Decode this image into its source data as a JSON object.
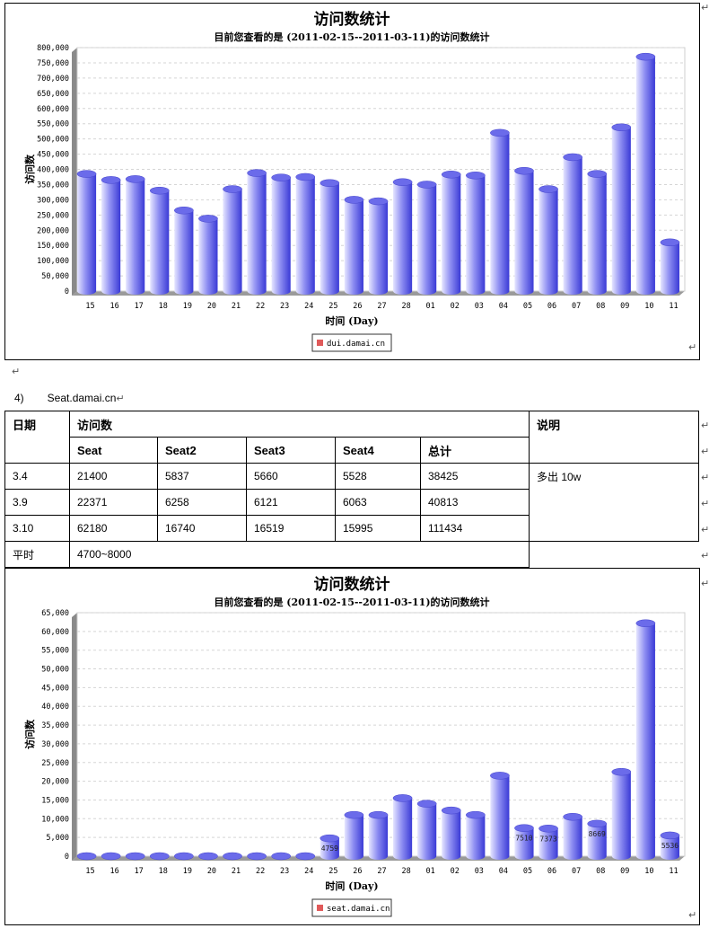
{
  "colors": {
    "bar_light": "#e6e6ff",
    "bar_mid": "#8f8ff2",
    "bar_dark": "#3a3ad6",
    "bar_top": "#6b6bea",
    "legend_swatch": "#e05a5a"
  },
  "paragraph_mark": "↵",
  "heading": {
    "number": "4)",
    "text": "Seat.damai.cn"
  },
  "table": {
    "headers": {
      "date": "日期",
      "visits": "访问数",
      "note": "说明"
    },
    "subheaders": [
      "Seat",
      "Seat2",
      "Seat3",
      "Seat4",
      "总计"
    ],
    "rows": [
      {
        "date": "3.4",
        "values": [
          "21400",
          "5837",
          "5660",
          "5528",
          "38425"
        ]
      },
      {
        "date": "3.9",
        "values": [
          "22371",
          "6258",
          "6121",
          "6063",
          "40813"
        ]
      },
      {
        "date": "3.10",
        "values": [
          "62180",
          "16740",
          "16519",
          "15995",
          "111434"
        ]
      }
    ],
    "note_text": "多出 10w",
    "normal_label": "平时",
    "normal_value": "4700~8000"
  },
  "chart_data": [
    {
      "type": "bar",
      "title": "访问数统计",
      "subtitle": "目前您查看的是 (2011-02-15--2011-03-11)的访问数统计",
      "xlabel": "时间 (Day)",
      "ylabel": "访问数",
      "ylim": [
        0,
        800000
      ],
      "yticks": [
        "0",
        "50,000",
        "100,000",
        "150,000",
        "200,000",
        "250,000",
        "300,000",
        "350,000",
        "400,000",
        "450,000",
        "500,000",
        "550,000",
        "600,000",
        "650,000",
        "700,000",
        "750,000",
        "800,000"
      ],
      "categories": [
        "15",
        "16",
        "17",
        "18",
        "19",
        "20",
        "21",
        "22",
        "23",
        "24",
        "25",
        "26",
        "27",
        "28",
        "01",
        "02",
        "03",
        "04",
        "05",
        "06",
        "07",
        "08",
        "09",
        "10",
        "11"
      ],
      "series": [
        {
          "name": "dui.damai.cn",
          "values": [
            385000,
            365000,
            368000,
            330000,
            265000,
            238000,
            335000,
            388000,
            373000,
            375000,
            355000,
            300000,
            295000,
            358000,
            350000,
            383000,
            380000,
            520000,
            395000,
            335000,
            440000,
            385000,
            538000,
            770000,
            160000
          ]
        }
      ],
      "data_labels": {},
      "grid": true,
      "legend": "bottom-center"
    },
    {
      "type": "bar",
      "title": "访问数统计",
      "subtitle": "目前您查看的是 (2011-02-15--2011-03-11)的访问数统计",
      "xlabel": "时间 (Day)",
      "ylabel": "访问数",
      "ylim": [
        0,
        65000
      ],
      "yticks": [
        "0",
        "5,000",
        "10,000",
        "15,000",
        "20,000",
        "25,000",
        "30,000",
        "35,000",
        "40,000",
        "45,000",
        "50,000",
        "55,000",
        "60,000",
        "65,000"
      ],
      "categories": [
        "15",
        "16",
        "17",
        "18",
        "19",
        "20",
        "21",
        "22",
        "23",
        "24",
        "25",
        "26",
        "27",
        "28",
        "01",
        "02",
        "03",
        "04",
        "05",
        "06",
        "07",
        "08",
        "09",
        "10",
        "11"
      ],
      "series": [
        {
          "name": "seat.damai.cn",
          "values": [
            0,
            0,
            0,
            0,
            0,
            0,
            0,
            0,
            0,
            0,
            4759,
            11000,
            11000,
            15500,
            14000,
            12200,
            11000,
            21500,
            7510,
            7373,
            10500,
            8669,
            22500,
            62180,
            5536
          ]
        }
      ],
      "data_labels": {
        "10": "4759",
        "18": "7510",
        "19": "7373",
        "21": "8669",
        "24": "5536"
      },
      "grid": true,
      "legend": "bottom-center"
    }
  ]
}
